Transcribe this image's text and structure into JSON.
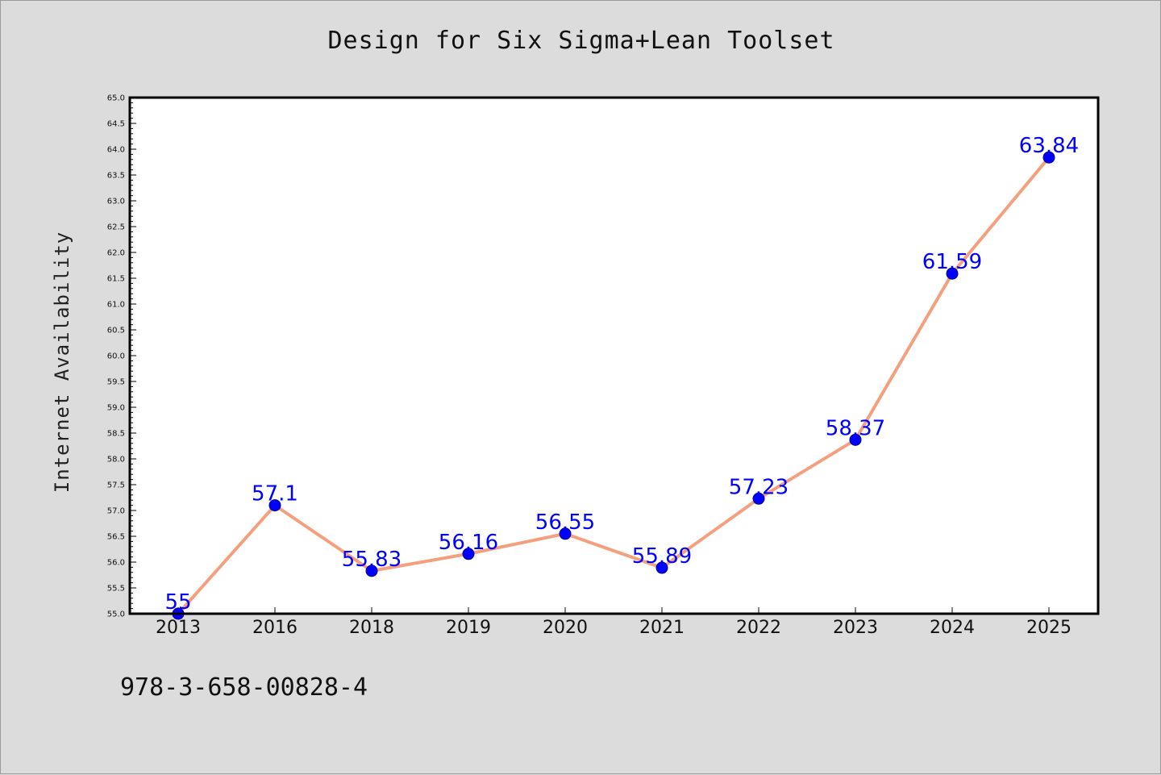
{
  "footer": {
    "code": "978-3-658-00828-4"
  },
  "colors": {
    "line": "#f4a07e",
    "marker": "#0000ff",
    "label": "#0000ff",
    "plot_bg": "#ffffff",
    "page_bg": "#dcdcdc"
  },
  "chart_data": {
    "type": "line",
    "title": "Design for Six Sigma+Lean Toolset",
    "xlabel": "",
    "ylabel": "Internet Availability",
    "categories": [
      "2013",
      "2016",
      "2018",
      "2019",
      "2020",
      "2021",
      "2022",
      "2023",
      "2024",
      "2025"
    ],
    "series": [
      {
        "values": [
          55,
          57.1,
          55.83,
          56.16,
          56.55,
          55.89,
          57.23,
          58.37,
          61.59,
          63.84
        ],
        "data_labels": [
          "55",
          "57.1",
          "55.83",
          "56.16",
          "56.55",
          "55.89",
          "57.23",
          "58.37",
          "61.59",
          "63.84"
        ]
      }
    ],
    "ylim": [
      55.0,
      65.0
    ],
    "yticks": [
      "55.0",
      "55.5",
      "56.0",
      "56.5",
      "57.0",
      "57.5",
      "58.0",
      "58.5",
      "59.0",
      "59.5",
      "60.0",
      "60.5",
      "61.0",
      "61.5",
      "62.0",
      "62.5",
      "63.0",
      "63.5",
      "64.0",
      "64.5",
      "65.0"
    ],
    "grid": false,
    "legend": "none"
  }
}
